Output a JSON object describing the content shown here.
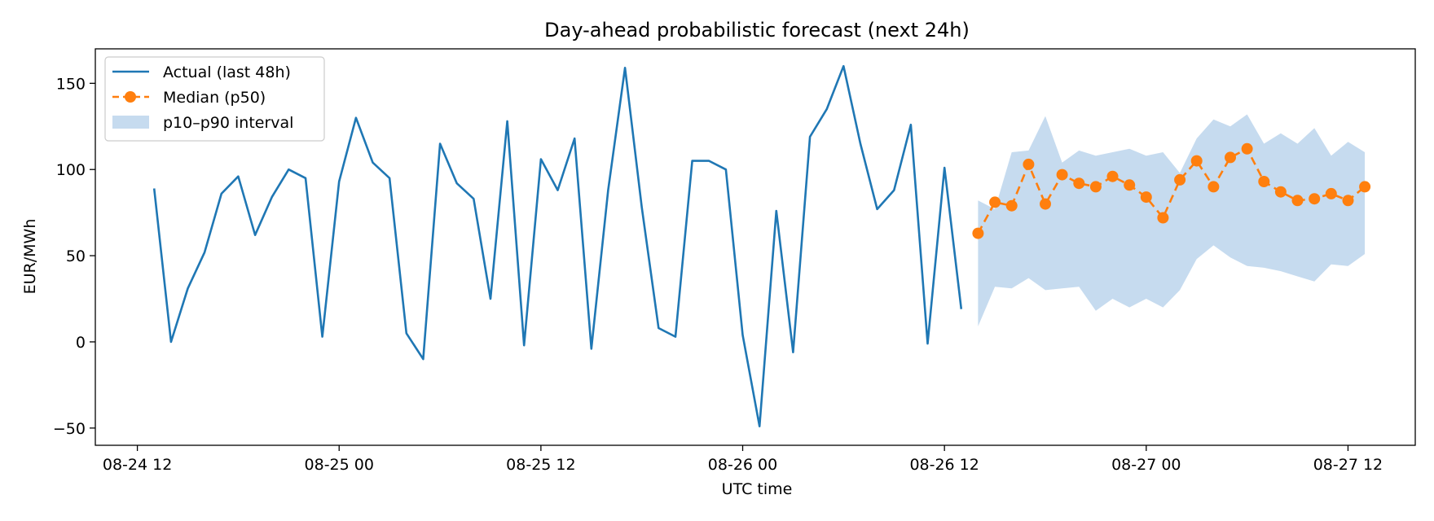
{
  "chart_data": {
    "type": "line",
    "title": "Day-ahead probabilistic forecast (next 24h)",
    "xlabel": "UTC time",
    "ylabel": "EUR/MWh",
    "x_unit": "hour",
    "xlim": [
      "2024-08-24 09:30",
      "2024-08-27 16:00"
    ],
    "ylim": [
      -60,
      170
    ],
    "xticks": [
      {
        "at": "2024-08-24 12:00",
        "label": "08-24 12"
      },
      {
        "at": "2024-08-25 00:00",
        "label": "08-25 00"
      },
      {
        "at": "2024-08-25 12:00",
        "label": "08-25 12"
      },
      {
        "at": "2024-08-26 00:00",
        "label": "08-26 00"
      },
      {
        "at": "2024-08-26 12:00",
        "label": "08-26 12"
      },
      {
        "at": "2024-08-27 00:00",
        "label": "08-27 00"
      },
      {
        "at": "2024-08-27 12:00",
        "label": "08-27 12"
      }
    ],
    "yticks": [
      -50,
      0,
      50,
      100,
      150
    ],
    "grid": false,
    "legend_position": "top-left",
    "series": [
      {
        "name": "Actual (last 48h)",
        "style": "line",
        "color": "#1f77b4",
        "start": "2024-08-24 13:00",
        "step_hours": 1,
        "values": [
          89,
          0,
          31,
          52,
          86,
          96,
          62,
          84,
          100,
          95,
          3,
          93,
          130,
          104,
          95,
          5,
          -10,
          115,
          92,
          83,
          25,
          128,
          -2,
          106,
          88,
          118,
          -4,
          88,
          159,
          78,
          8,
          3,
          105,
          105,
          100,
          4,
          -49,
          76,
          -6,
          119,
          135,
          160,
          115,
          77,
          88,
          126,
          -1,
          101,
          19
        ]
      },
      {
        "name": "Median (p50)",
        "style": "dashed-markers",
        "color": "#ff7f0e",
        "start": "2024-08-26 14:00",
        "step_hours": 1,
        "values": [
          63,
          81,
          79,
          103,
          80,
          97,
          92,
          90,
          96,
          91,
          84,
          72,
          94,
          105,
          90,
          107,
          112,
          93,
          87,
          82,
          83,
          86,
          82,
          90
        ]
      },
      {
        "name": "p10–p90 interval",
        "style": "band",
        "color": "#c6dbef",
        "start": "2024-08-26 14:00",
        "step_hours": 1,
        "lower": [
          9,
          32,
          31,
          37,
          30,
          31,
          32,
          18,
          25,
          20,
          25,
          20,
          30,
          48,
          56,
          49,
          44,
          43,
          41,
          38,
          35,
          45,
          44,
          51
        ],
        "upper": [
          82,
          77,
          110,
          111,
          131,
          104,
          111,
          108,
          110,
          112,
          108,
          110,
          98,
          118,
          129,
          125,
          132,
          115,
          121,
          115,
          124,
          108,
          116,
          110
        ]
      }
    ]
  }
}
